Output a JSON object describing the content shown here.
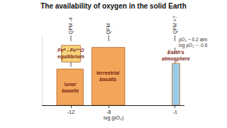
{
  "chart_data": {
    "type": "range",
    "title": "The availability of oxygen in the solid Earth",
    "x_label": "log (pO₂)",
    "xlim": [
      -15,
      0
    ],
    "xticks": [
      -12,
      -8,
      -1
    ],
    "ylim": [
      0,
      1
    ],
    "tick_labels": "x",
    "grid": false,
    "boxes": [
      {
        "label": "Fe⁰ - Fe²⁺O equilibrium",
        "x": [
          -13,
          -11
        ],
        "y": [
          0.62,
          0.86
        ],
        "color": "#f6d27a"
      },
      {
        "label": "lunar basalts",
        "x": [
          -13.5,
          -10.7
        ],
        "y": [
          0,
          0.52
        ],
        "color": "#f2a65a"
      },
      {
        "label": "terrestrial basalts",
        "x": [
          -9.8,
          -6.3
        ],
        "y": [
          0,
          0.83
        ],
        "color": "#f2a65a"
      },
      {
        "label": "Earth's atmosphere",
        "x": [
          -1.3,
          -0.5
        ],
        "y": [
          0,
          0.6
        ],
        "color": "#9ccbea"
      }
    ],
    "reference_lines": [
      {
        "label": "QFM -4",
        "x": -12
      },
      {
        "label": "QFM",
        "x": -8
      },
      {
        "label": "QFM +7",
        "x": -1
      }
    ],
    "annotations": [
      "pO₂ ~ 0.2 atm",
      "log pO₂ ~ -0.6"
    ]
  }
}
